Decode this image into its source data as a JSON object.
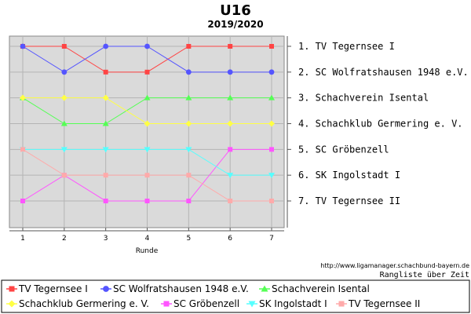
{
  "chart_data": {
    "type": "line",
    "title": "U16",
    "subtitle": "2019/2020",
    "xlabel": "Runde",
    "ylabel": "",
    "x": [
      1,
      2,
      3,
      4,
      5,
      6,
      7
    ],
    "ylim": [
      1,
      7
    ],
    "y_inverted": true,
    "grid": true,
    "legend_position": "bottom",
    "rank_labels": [
      "1. TV Tegernsee I",
      "2. SC Wolfratshausen 1948 e.V.",
      "3. Schachverein Isental",
      "4. Schachklub Germering e. V.",
      "5. SC Gröbenzell",
      "6. SK Ingolstadt I",
      "7. TV Tegernsee II"
    ],
    "series": [
      {
        "name": "TV Tegernsee I",
        "values": [
          1,
          1,
          2,
          2,
          1,
          1,
          1
        ],
        "color": "#ff4444",
        "marker": "square"
      },
      {
        "name": "SC Wolfratshausen 1948 e.V.",
        "values": [
          1,
          2,
          1,
          1,
          2,
          2,
          2
        ],
        "color": "#5555ff",
        "marker": "circle"
      },
      {
        "name": "Schachverein Isental",
        "values": [
          3,
          4,
          4,
          3,
          3,
          3,
          3
        ],
        "color": "#55ff55",
        "marker": "triangle-up"
      },
      {
        "name": "Schachklub Germering e. V.",
        "values": [
          3,
          3,
          3,
          4,
          4,
          4,
          4
        ],
        "color": "#ffff44",
        "marker": "diamond"
      },
      {
        "name": "SC Gröbenzell",
        "values": [
          7,
          6,
          7,
          7,
          7,
          5,
          5
        ],
        "color": "#ff55ff",
        "marker": "square"
      },
      {
        "name": "SK Ingolstadt I",
        "values": [
          5,
          5,
          5,
          5,
          5,
          6,
          6
        ],
        "color": "#55ffff",
        "marker": "triangle-down"
      },
      {
        "name": "TV Tegernsee II",
        "values": [
          5,
          6,
          6,
          6,
          6,
          7,
          7
        ],
        "color": "#ffaaaa",
        "marker": "square"
      }
    ]
  },
  "source_url": "http://www.ligamanager.schachbund-bayern.de",
  "source_note": "Rangliste über Zeit"
}
